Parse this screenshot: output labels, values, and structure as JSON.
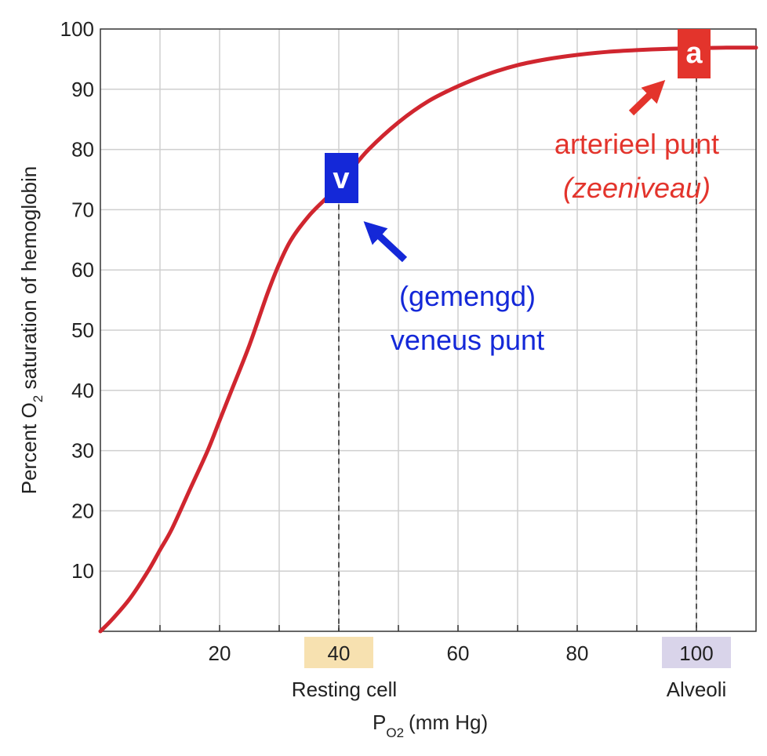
{
  "chart_data": {
    "type": "line",
    "xlabel": "P",
    "xlabel_sub": "O2",
    "xlabel_unit": "(mm Hg)",
    "ylabel_prefix": "Percent O",
    "ylabel_sub": "2",
    "ylabel_suffix": " saturation of hemoglobin",
    "xlim": [
      0,
      110
    ],
    "ylim": [
      0,
      100
    ],
    "x_ticks": [
      {
        "value": 20,
        "label": "20"
      },
      {
        "value": 40,
        "label": "40",
        "highlight": "#f7e1b0",
        "caption": "Resting cell"
      },
      {
        "value": 60,
        "label": "60"
      },
      {
        "value": 80,
        "label": "80"
      },
      {
        "value": 100,
        "label": "100",
        "highlight": "#d9d4ea",
        "caption": "Alveoli"
      }
    ],
    "y_ticks": [
      {
        "value": 10,
        "label": "10"
      },
      {
        "value": 20,
        "label": "20"
      },
      {
        "value": 30,
        "label": "30"
      },
      {
        "value": 40,
        "label": "40"
      },
      {
        "value": 50,
        "label": "50"
      },
      {
        "value": 60,
        "label": "60"
      },
      {
        "value": 70,
        "label": "70"
      },
      {
        "value": 80,
        "label": "80"
      },
      {
        "value": 90,
        "label": "90"
      },
      {
        "value": 100,
        "label": "100"
      }
    ],
    "grid_x_step": 10,
    "grid_y_step": 10,
    "grid": true,
    "series": [
      {
        "color": "#d0262f",
        "x": [
          0,
          2,
          5,
          8,
          10,
          12,
          15,
          18,
          20,
          22,
          25,
          28,
          30,
          32,
          35,
          38,
          40,
          42,
          45,
          50,
          55,
          60,
          65,
          70,
          75,
          80,
          85,
          90,
          95,
          100,
          105,
          110
        ],
        "y": [
          0,
          2,
          5.5,
          10,
          13.5,
          17,
          23.5,
          30,
          35,
          40,
          47.5,
          56,
          61,
          65,
          69,
          72,
          74,
          76.5,
          80,
          84.5,
          88,
          90.5,
          92.5,
          94,
          95,
          95.7,
          96.2,
          96.5,
          96.7,
          96.8,
          96.9,
          96.9
        ]
      }
    ],
    "reference_lines": [
      {
        "x": 40,
        "y": 74
      },
      {
        "x": 100,
        "y": 96.8
      }
    ],
    "annotations": {
      "venous": {
        "badge": "v",
        "badge_color": "#1428d8",
        "line1": "(gemengd)",
        "line2": "veneus punt",
        "color": "#1428d8"
      },
      "arterial": {
        "badge": "a",
        "badge_color": "#e3342c",
        "line1": "arterieel punt",
        "line2": "(zeeniveau)",
        "color": "#e3342c"
      }
    }
  }
}
